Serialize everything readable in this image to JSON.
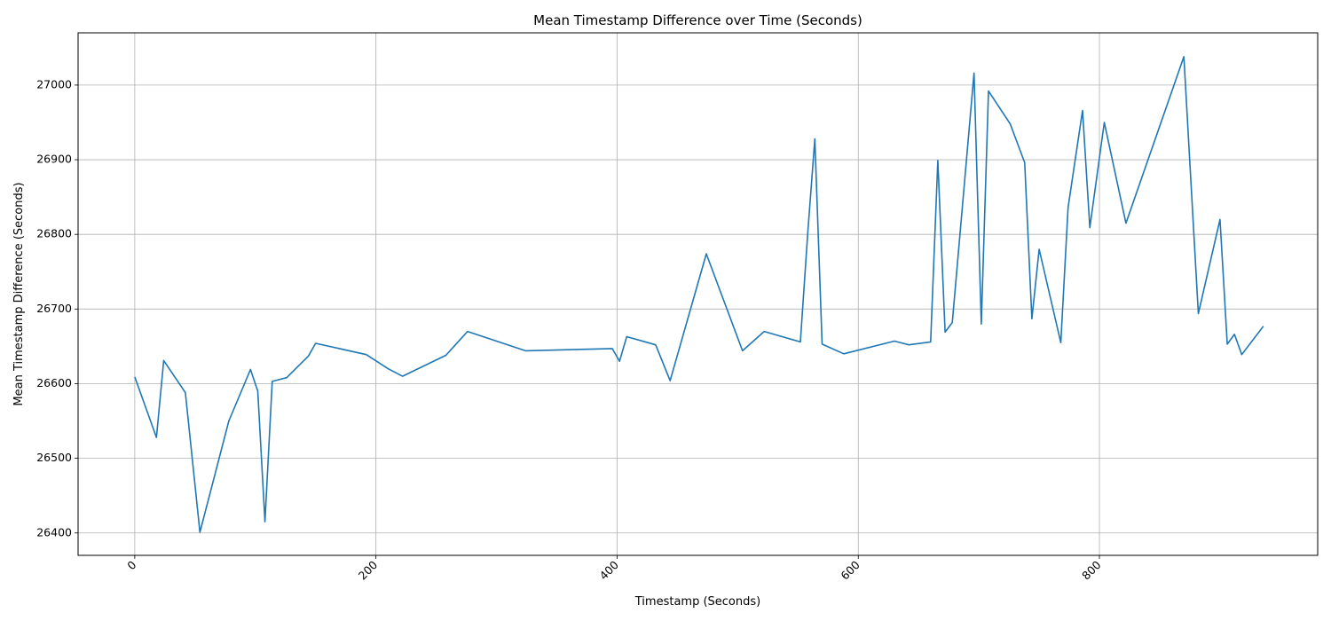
{
  "chart_data": {
    "type": "line",
    "title": "Mean Timestamp Difference over Time (Seconds)",
    "xlabel": "Timestamp (Seconds)",
    "ylabel": "Mean Timestamp Difference (Seconds)",
    "xlim": [
      -47,
      981
    ],
    "ylim": [
      26370,
      27070
    ],
    "xticks": [
      0,
      200,
      400,
      600,
      800
    ],
    "xtick_labels": [
      "0",
      "200",
      "400",
      "600",
      "800"
    ],
    "yticks": [
      26400,
      26500,
      26600,
      26700,
      26800,
      26900,
      27000
    ],
    "ytick_labels": [
      "26400",
      "26500",
      "26600",
      "26700",
      "26800",
      "26900",
      "27000"
    ],
    "xtick_rotation": 45,
    "grid": true,
    "line_color": "#1f77b4",
    "series": [
      {
        "x": [
          0,
          18,
          24,
          42,
          54,
          78,
          96,
          102,
          108,
          114,
          126,
          144,
          150,
          192,
          210,
          222,
          258,
          276,
          324,
          396,
          402,
          408,
          432,
          444,
          474,
          504,
          522,
          552,
          558,
          564,
          570,
          588,
          630,
          642,
          660,
          666,
          672,
          678,
          696,
          702,
          708,
          726,
          738,
          744,
          750,
          768,
          774,
          786,
          792,
          804,
          822,
          870,
          882,
          900,
          906,
          912,
          918,
          936
        ],
        "y": [
          26609,
          26528,
          26631,
          26588,
          26401,
          26550,
          26619,
          26590,
          26415,
          26603,
          26608,
          26637,
          26654,
          26639,
          26620,
          26610,
          26638,
          26670,
          26644,
          26647,
          26630,
          26663,
          26652,
          26604,
          26774,
          26644,
          26670,
          26656,
          26800,
          26928,
          26653,
          26640,
          26657,
          26652,
          26656,
          26899,
          26669,
          26682,
          27016,
          26680,
          26992,
          26948,
          26896,
          26687,
          26780,
          26655,
          26836,
          26966,
          26809,
          26950,
          26815,
          27038,
          26694,
          26820,
          26653,
          26666,
          26639,
          26677
        ]
      }
    ]
  }
}
